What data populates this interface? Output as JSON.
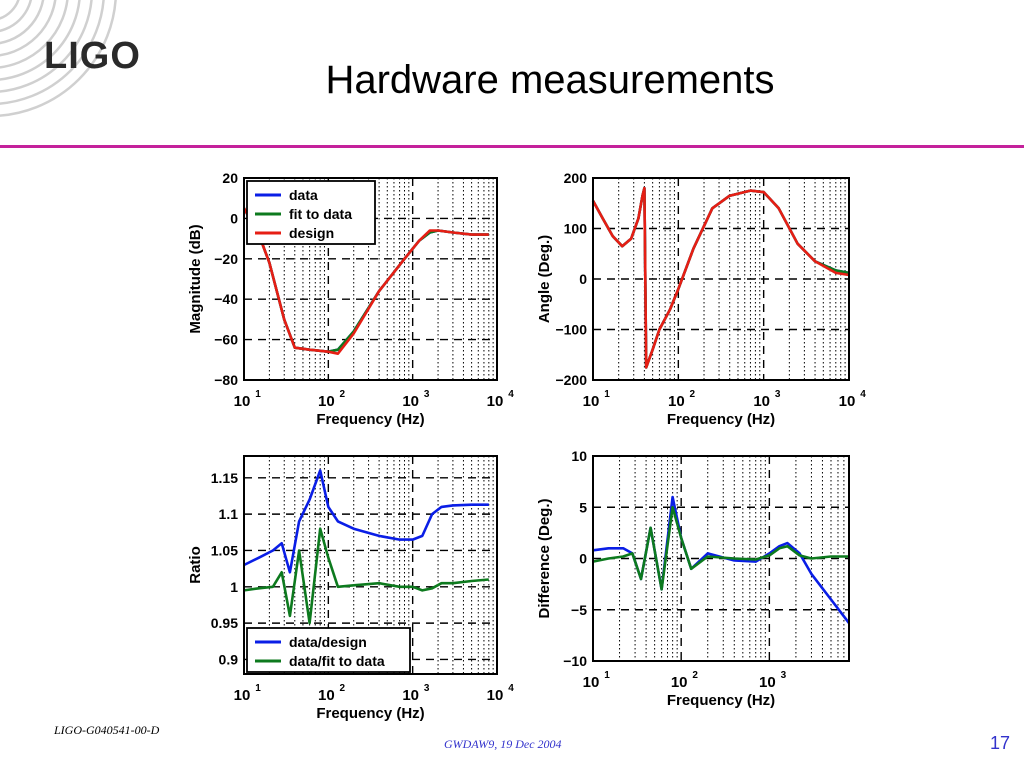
{
  "logo": {
    "text": "LIGO"
  },
  "slide": {
    "title": "Hardware measurements"
  },
  "footer": {
    "doc_id": "LIGO-G040541-00-D",
    "event": "GWDAW9, 19 Dec 2004",
    "page": "17"
  },
  "colors": {
    "accent_rule": "#c4219b",
    "data": "#0a1ee6",
    "fit": "#0d7a1e",
    "design": "#e61e14",
    "footer_text": "#3333cc"
  },
  "chart_data": [
    {
      "type": "line",
      "xlabel": "Frequency (Hz)",
      "ylabel": "Magnitude (dB)",
      "xscale": "log",
      "xlim": [
        10,
        10000
      ],
      "ylim": [
        -80,
        20
      ],
      "yticks": [
        "20",
        "0",
        "−20",
        "−40",
        "−60",
        "−80"
      ],
      "xticks": [
        {
          "base": "10",
          "exp": "1"
        },
        {
          "base": "10",
          "exp": "2"
        },
        {
          "base": "10",
          "exp": "3"
        },
        {
          "base": "10",
          "exp": "4"
        }
      ],
      "grid": true,
      "legend_position": "top-left",
      "legend": [
        "data",
        "fit to data",
        "design"
      ],
      "series": [
        {
          "name": "data",
          "x": [
            10,
            15,
            20,
            30,
            40,
            60,
            100,
            130,
            200,
            400,
            800,
            1200,
            1600,
            2000,
            3000,
            5000,
            8000
          ],
          "y": [
            5,
            -8,
            -22,
            -50,
            -64,
            -65,
            -66,
            -65,
            -56,
            -36,
            -20,
            -11,
            -7,
            -6,
            -7,
            -8,
            -8
          ]
        },
        {
          "name": "fit to data",
          "x": [
            10,
            15,
            20,
            30,
            40,
            60,
            100,
            130,
            200,
            400,
            800,
            1200,
            1600,
            2000,
            3000,
            5000,
            8000
          ],
          "y": [
            5,
            -8,
            -22,
            -50,
            -64,
            -65,
            -66,
            -65,
            -56,
            -36,
            -20,
            -11,
            -7,
            -6,
            -7,
            -8,
            -8
          ]
        },
        {
          "name": "design",
          "x": [
            10,
            15,
            20,
            30,
            40,
            60,
            100,
            130,
            200,
            400,
            800,
            1200,
            1600,
            2000,
            3000,
            5000,
            8000
          ],
          "y": [
            5,
            -8,
            -22,
            -50,
            -64,
            -65,
            -66,
            -67,
            -57,
            -36,
            -20,
            -11,
            -6,
            -6,
            -7,
            -8,
            -8
          ]
        }
      ]
    },
    {
      "type": "line",
      "xlabel": "Frequency (Hz)",
      "ylabel": "Angle (Deg.)",
      "xscale": "log",
      "xlim": [
        10,
        10000
      ],
      "ylim": [
        -200,
        200
      ],
      "yticks": [
        "200",
        "100",
        "0",
        "−100",
        "−200"
      ],
      "xticks": [
        {
          "base": "10",
          "exp": "1"
        },
        {
          "base": "10",
          "exp": "2"
        },
        {
          "base": "10",
          "exp": "3"
        },
        {
          "base": "10",
          "exp": "4"
        }
      ],
      "grid": true,
      "series": [
        {
          "name": "data",
          "x": [
            10,
            13,
            17,
            22,
            28,
            34,
            38,
            40,
            42,
            50,
            60,
            80,
            100,
            150,
            250,
            400,
            700,
            1000,
            1500,
            2500,
            4000,
            7000,
            10000
          ],
          "y": [
            155,
            120,
            85,
            65,
            80,
            120,
            165,
            180,
            -175,
            -140,
            -100,
            -60,
            -20,
            60,
            140,
            165,
            175,
            172,
            140,
            70,
            35,
            17,
            12
          ]
        },
        {
          "name": "fit to data",
          "x": [
            10,
            13,
            17,
            22,
            28,
            34,
            38,
            40,
            42,
            50,
            60,
            80,
            100,
            150,
            250,
            400,
            700,
            1000,
            1500,
            2500,
            4000,
            7000,
            10000
          ],
          "y": [
            155,
            120,
            85,
            65,
            80,
            120,
            165,
            180,
            -175,
            -140,
            -100,
            -60,
            -20,
            60,
            140,
            165,
            175,
            172,
            140,
            70,
            35,
            17,
            12
          ]
        },
        {
          "name": "design",
          "x": [
            10,
            13,
            17,
            22,
            28,
            34,
            38,
            40,
            42,
            50,
            60,
            80,
            100,
            150,
            250,
            400,
            700,
            1000,
            1500,
            2500,
            4000,
            7000,
            10000
          ],
          "y": [
            155,
            120,
            85,
            65,
            80,
            120,
            165,
            180,
            -175,
            -140,
            -100,
            -60,
            -20,
            60,
            140,
            165,
            175,
            172,
            140,
            70,
            35,
            12,
            8
          ]
        }
      ]
    },
    {
      "type": "line",
      "xlabel": "Frequency (Hz)",
      "ylabel": "Ratio",
      "xscale": "log",
      "xlim": [
        10,
        10000
      ],
      "ylim": [
        0.88,
        1.18
      ],
      "yticks": [
        "1.15",
        "1.1",
        "1.05",
        "1",
        "0.95",
        "0.9"
      ],
      "xticks": [
        {
          "base": "10",
          "exp": "1"
        },
        {
          "base": "10",
          "exp": "2"
        },
        {
          "base": "10",
          "exp": "3"
        },
        {
          "base": "10",
          "exp": "4"
        }
      ],
      "grid": true,
      "legend_position": "bottom-left",
      "legend": [
        "data/design",
        "data/fit to data"
      ],
      "series": [
        {
          "name": "data/design",
          "x": [
            10,
            15,
            22,
            28,
            35,
            45,
            60,
            80,
            100,
            130,
            200,
            400,
            700,
            1000,
            1300,
            1700,
            2200,
            3000,
            5000,
            8000
          ],
          "y": [
            1.03,
            1.04,
            1.05,
            1.06,
            1.02,
            1.09,
            1.12,
            1.16,
            1.11,
            1.09,
            1.08,
            1.07,
            1.065,
            1.065,
            1.07,
            1.1,
            1.11,
            1.112,
            1.113,
            1.113
          ]
        },
        {
          "name": "data/fit to data",
          "x": [
            10,
            15,
            22,
            28,
            35,
            45,
            60,
            80,
            100,
            130,
            200,
            400,
            700,
            1000,
            1300,
            1700,
            2200,
            3000,
            5000,
            8000
          ],
          "y": [
            0.995,
            0.998,
            1.0,
            1.02,
            0.96,
            1.05,
            0.95,
            1.08,
            1.04,
            1.0,
            1.002,
            1.005,
            1.0,
            1.0,
            0.995,
            0.998,
            1.005,
            1.005,
            1.008,
            1.01
          ]
        }
      ]
    },
    {
      "type": "line",
      "xlabel": "Frequency (Hz)",
      "ylabel": "Difference (Deg.)",
      "xscale": "log",
      "xlim": [
        10,
        8000
      ],
      "ylim": [
        -10,
        10
      ],
      "yticks": [
        "10",
        "5",
        "0",
        "−5",
        "−10"
      ],
      "xticks": [
        {
          "base": "10",
          "exp": "1"
        },
        {
          "base": "10",
          "exp": "2"
        },
        {
          "base": "10",
          "exp": "3"
        }
      ],
      "grid": true,
      "series": [
        {
          "name": "data/design",
          "x": [
            10,
            15,
            22,
            28,
            35,
            45,
            60,
            80,
            100,
            130,
            200,
            400,
            700,
            1000,
            1300,
            1600,
            2200,
            3000,
            5000,
            8000
          ],
          "y": [
            0.8,
            1.0,
            1.0,
            0.5,
            -2,
            3,
            -3,
            6,
            2,
            -1,
            0.5,
            -0.2,
            -0.3,
            0.5,
            1.2,
            1.5,
            0.5,
            -1.5,
            -4,
            -6.3
          ]
        },
        {
          "name": "data/fit to data",
          "x": [
            10,
            15,
            22,
            28,
            35,
            45,
            60,
            80,
            100,
            130,
            200,
            400,
            700,
            1000,
            1300,
            1600,
            2200,
            3000,
            5000,
            8000
          ],
          "y": [
            -0.3,
            0,
            0.2,
            0.5,
            -2,
            3,
            -3,
            5,
            2,
            -1,
            0.2,
            0,
            -0.1,
            0.3,
            1.0,
            1.2,
            0.3,
            0,
            0.2,
            0.2
          ]
        }
      ]
    }
  ]
}
